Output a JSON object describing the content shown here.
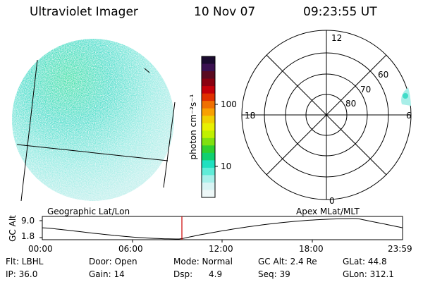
{
  "header": {
    "title": "Ultraviolet Imager",
    "date": "10 Nov 07",
    "time": "09:23:55 UT"
  },
  "colorbar": {
    "label": "photon cm⁻²s⁻¹",
    "ticks": [
      "100",
      "10"
    ],
    "colors": [
      "#1a0a2e",
      "#3a1050",
      "#5a0a20",
      "#8a0010",
      "#c4000a",
      "#e03000",
      "#f07000",
      "#f8a000",
      "#f0d000",
      "#e8f000",
      "#c0f000",
      "#80e010",
      "#30d030",
      "#10d070",
      "#20e0c0",
      "#60ecd8",
      "#a8f0ea",
      "#d8f4f4",
      "#eef8f8"
    ]
  },
  "polar_plot": {
    "mlt_labels": {
      "top": "12",
      "left": "18",
      "right": "6",
      "bottom": "0"
    },
    "lat_labels": [
      "60",
      "70",
      "80"
    ]
  },
  "timeseries": {
    "ylabel": "GC Alt",
    "yticks": [
      "9.0",
      "1.8"
    ],
    "left_title": "Geographic Lat/Lon",
    "right_title": "Apex MLat/MLT",
    "xticks": [
      "00:00",
      "06:00",
      "12:00",
      "18:00",
      "23:59"
    ],
    "marker_color": "#cc0000"
  },
  "footer": {
    "row1": [
      "Flt: LBHL",
      "Door: Open",
      "Mode: Normal",
      "GC Alt: 2.4 Re",
      "GLat:  44.8"
    ],
    "row2": [
      "IP: 36.0",
      "Gain: 14",
      "Dsp:      4.9",
      "Seq: 39",
      "GLon: 312.1"
    ]
  },
  "image_colors": {
    "background": "#d4f0f0",
    "mid": "#40e0d0",
    "bright": "#20e070"
  }
}
